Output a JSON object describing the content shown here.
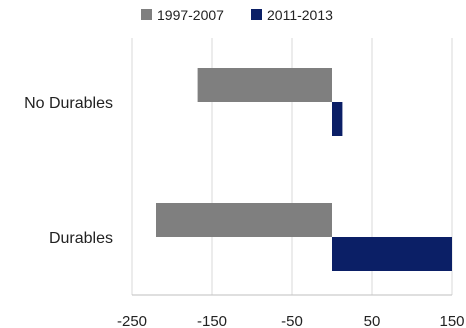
{
  "chart_data": {
    "type": "bar",
    "orientation": "horizontal",
    "categories": [
      "No Durables",
      "Durables"
    ],
    "series": [
      {
        "name": "1997-2007",
        "values": [
          -168,
          -220
        ],
        "color": "#7f7f7f"
      },
      {
        "name": "2011-2013",
        "values": [
          13,
          150
        ],
        "color": "#0b1f66"
      }
    ],
    "x_ticks": [
      -250,
      -150,
      -50,
      50,
      150
    ],
    "xlim": [
      -250,
      150
    ],
    "grid": true,
    "legend_position": "top-center",
    "title": "",
    "xlabel": "",
    "ylabel": ""
  }
}
